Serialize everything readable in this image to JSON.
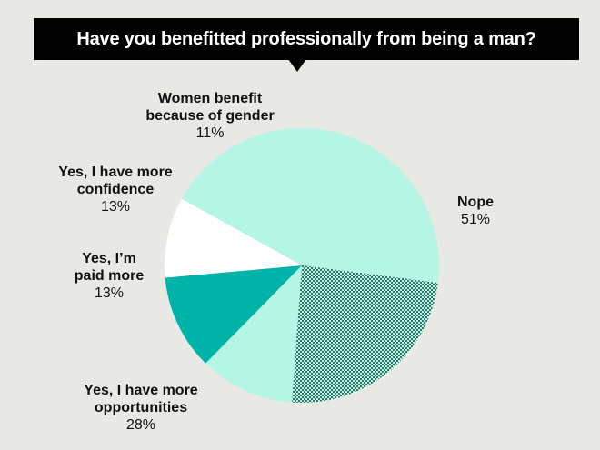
{
  "chart_data": {
    "type": "pie",
    "title": "Have you benefitted professionally from being a man?",
    "slices": [
      {
        "label": "Nope",
        "value": 51,
        "display": "51%",
        "color": "#b4f5e4",
        "pattern": "none"
      },
      {
        "label": "Yes, I have more opportunities",
        "value": 28,
        "display": "28%",
        "color": "#b4f5e4",
        "pattern": "dots"
      },
      {
        "label": "Yes, I’m paid more",
        "value": 13,
        "display": "13%",
        "color": "#b4f5e4",
        "pattern": "none"
      },
      {
        "label": "Yes, I have more confidence",
        "value": 13,
        "display": "13%",
        "color": "#00b3a8",
        "pattern": "none"
      },
      {
        "label": "Women benefit because of gender",
        "value": 11,
        "display": "11%",
        "color": "#ffffff",
        "pattern": "none"
      }
    ]
  },
  "labels": {
    "nope": {
      "name": "Nope",
      "pct": "51%"
    },
    "opportunities": {
      "line1": "Yes, I have more",
      "line2": "opportunities",
      "pct": "28%"
    },
    "paid": {
      "line1": "Yes, I’m",
      "line2": "paid more",
      "pct": "13%"
    },
    "confidence": {
      "line1": "Yes, I have more",
      "line2": "confidence",
      "pct": "13%"
    },
    "women": {
      "line1": "Women benefit",
      "line2": "because of gender",
      "pct": "11%"
    }
  }
}
